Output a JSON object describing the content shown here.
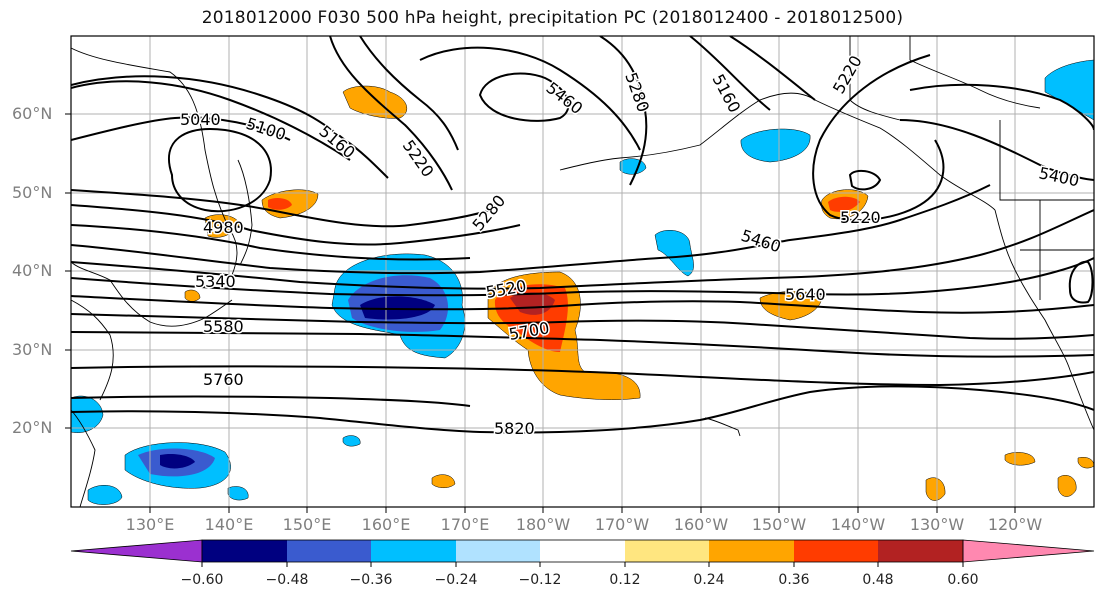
{
  "title": "2018012000 F030 500 hPa height, precipitation PC (2018012400 - 2018012500)",
  "map": {
    "lat_ticks": [
      "60°N",
      "50°N",
      "40°N",
      "30°N",
      "20°N"
    ],
    "lon_ticks": [
      "130°E",
      "140°E",
      "150°E",
      "160°E",
      "170°E",
      "180°W",
      "170°W",
      "160°W",
      "150°W",
      "140°W",
      "130°W",
      "120°W"
    ],
    "contour_labels": [
      "5040",
      "5100",
      "5160",
      "5220",
      "5460",
      "5280",
      "5160",
      "5220",
      "5400",
      "4980",
      "5280",
      "5220",
      "5460",
      "5340",
      "5520",
      "5640",
      "5580",
      "5700",
      "5760",
      "5820"
    ]
  },
  "colorbar": {
    "ticks": [
      "−0.60",
      "−0.48",
      "−0.36",
      "−0.24",
      "−0.12",
      "0.12",
      "0.24",
      "0.36",
      "0.48",
      "0.60"
    ],
    "colors": [
      "#9b30d0",
      "#000080",
      "#3a5bcf",
      "#00bfff",
      "#b0e2ff",
      "#ffffff",
      "#ffe680",
      "#ffa500",
      "#ff3c00",
      "#b22222",
      "#ff88b0"
    ]
  },
  "anomaly_colors": {
    "neg_dark": "#000080",
    "neg_mid": "#3a5bcf",
    "neg_light": "#00bfff",
    "pos_light": "#ffa500",
    "pos_mid": "#ff3c00",
    "pos_dark": "#b22222"
  }
}
